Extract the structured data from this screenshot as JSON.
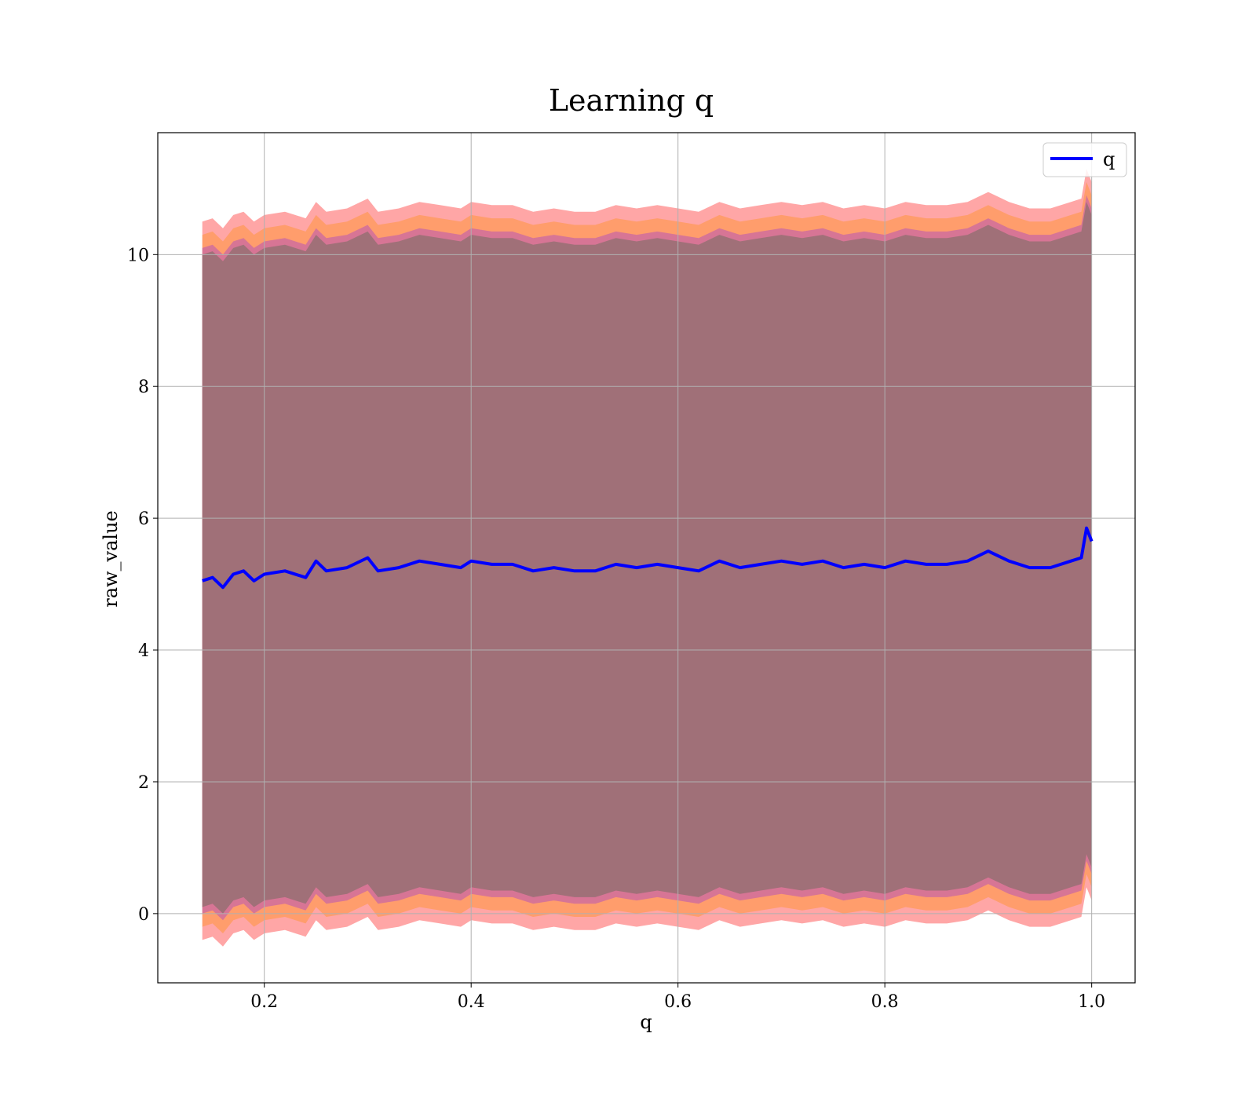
{
  "chart_data": {
    "type": "line",
    "title": "Learning q",
    "xlabel": "q",
    "ylabel": "raw_value",
    "xlim": [
      0.097,
      1.042
    ],
    "ylim": [
      -1.05,
      11.85
    ],
    "xticks": [
      0.2,
      0.4,
      0.6,
      0.8,
      1.0
    ],
    "xtick_labels": [
      "0.2",
      "0.4",
      "0.6",
      "0.8",
      "1.0"
    ],
    "yticks": [
      0,
      2,
      4,
      6,
      8,
      10
    ],
    "ytick_labels": [
      "0",
      "2",
      "4",
      "6",
      "8",
      "10"
    ],
    "grid": true,
    "legend_position": "top-right",
    "colors": {
      "line": "#0000ff",
      "band_outer": "#ff0000",
      "band_inner": "#8b2be2",
      "band_mid": "#ff8c00"
    },
    "series": [
      {
        "name": "q",
        "x": [
          0.14,
          0.15,
          0.16,
          0.17,
          0.18,
          0.19,
          0.2,
          0.22,
          0.24,
          0.25,
          0.26,
          0.28,
          0.3,
          0.31,
          0.33,
          0.35,
          0.37,
          0.39,
          0.4,
          0.42,
          0.44,
          0.46,
          0.48,
          0.5,
          0.52,
          0.54,
          0.56,
          0.58,
          0.6,
          0.62,
          0.64,
          0.66,
          0.68,
          0.7,
          0.72,
          0.74,
          0.76,
          0.78,
          0.8,
          0.82,
          0.84,
          0.86,
          0.88,
          0.9,
          0.92,
          0.94,
          0.96,
          0.98,
          0.99,
          0.995,
          1.0
        ],
        "y": [
          5.05,
          5.1,
          4.95,
          5.15,
          5.2,
          5.05,
          5.15,
          5.2,
          5.1,
          5.35,
          5.2,
          5.25,
          5.4,
          5.2,
          5.25,
          5.35,
          5.3,
          5.25,
          5.35,
          5.3,
          5.3,
          5.2,
          5.25,
          5.2,
          5.2,
          5.3,
          5.25,
          5.3,
          5.25,
          5.2,
          5.35,
          5.25,
          5.3,
          5.35,
          5.3,
          5.35,
          5.25,
          5.3,
          5.25,
          5.35,
          5.3,
          5.3,
          5.35,
          5.5,
          5.35,
          5.25,
          5.25,
          5.35,
          5.4,
          5.85,
          5.65
        ]
      }
    ],
    "bands": [
      {
        "name": "outer",
        "lower_offset": -5.45,
        "upper_offset": 5.45
      },
      {
        "name": "mid",
        "lower_offset": -5.25,
        "upper_offset": 5.25
      },
      {
        "name": "inner",
        "lower_offset": -5.05,
        "upper_offset": 5.05
      }
    ]
  }
}
